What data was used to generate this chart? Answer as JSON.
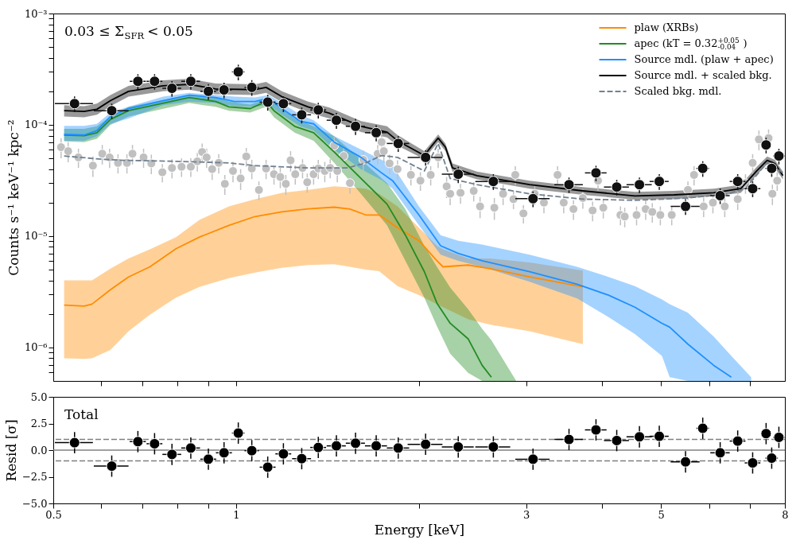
{
  "chart_data": [
    {
      "type": "line",
      "ylabel": "Counts s⁻¹ keV⁻¹ kpc⁻²",
      "log": "xy",
      "xlim": [
        0.5,
        8
      ],
      "ylim": [
        5e-07,
        0.001
      ],
      "xticks": [
        0.6,
        0.7,
        0.8,
        0.9,
        1,
        2,
        3,
        4,
        5,
        6,
        7
      ],
      "yticks": [
        {
          "value": 0.001,
          "label": "10⁻³"
        },
        {
          "value": 0.0001,
          "label": "10⁻⁴"
        },
        {
          "value": 1e-05,
          "label": "10⁻⁵"
        },
        {
          "value": 1e-06,
          "label": "10⁻⁶"
        },
        {
          "value": 6e-07,
          "label": null
        },
        {
          "value": 7e-07,
          "label": null
        },
        {
          "value": 8e-07,
          "label": null
        },
        {
          "value": 9e-07,
          "label": null
        },
        {
          "value": 2e-06,
          "label": null
        },
        {
          "value": 3e-06,
          "label": null
        },
        {
          "value": 4e-06,
          "label": null
        },
        {
          "value": 5e-06,
          "label": null
        },
        {
          "value": 6e-06,
          "label": null
        },
        {
          "value": 7e-06,
          "label": null
        },
        {
          "value": 8e-06,
          "label": null
        },
        {
          "value": 9e-06,
          "label": null
        },
        {
          "value": 2e-05,
          "label": null
        },
        {
          "value": 3e-05,
          "label": null
        },
        {
          "value": 4e-05,
          "label": null
        },
        {
          "value": 5e-05,
          "label": null
        },
        {
          "value": 6e-05,
          "label": null
        },
        {
          "value": 7e-05,
          "label": null
        },
        {
          "value": 8e-05,
          "label": null
        },
        {
          "value": 9e-05,
          "label": null
        },
        {
          "value": 0.0002,
          "label": null
        },
        {
          "value": 0.0003,
          "label": null
        },
        {
          "value": 0.0004,
          "label": null
        },
        {
          "value": 0.0005,
          "label": null
        },
        {
          "value": 0.0006,
          "label": null
        },
        {
          "value": 0.0007,
          "label": null
        },
        {
          "value": 0.0008,
          "label": null
        },
        {
          "value": 0.0009,
          "label": null
        }
      ],
      "tick_labels": "y",
      "legend": "top right",
      "annotations": [
        "0.03 ≤ Σ$_{SFR}$ < 0.05"
      ],
      "series": [
        {
          "type": "scatter",
          "marker": "circle",
          "color": "#c0c0c0",
          "x": [
            0.515,
            0.529,
            0.55,
            0.581,
            0.602,
            0.619,
            0.639,
            0.661,
            0.675,
            0.704,
            0.725,
            0.756,
            0.784,
            0.813,
            0.842,
            0.863,
            0.879,
            0.894,
            0.913,
            0.936,
            0.958,
            0.988,
            1.017,
            1.039,
            1.061,
            1.09,
            1.12,
            1.154,
            1.182,
            1.207,
            1.229,
            1.251,
            1.286,
            1.309,
            1.341,
            1.365,
            1.399,
            1.428,
            1.45,
            1.467,
            1.503,
            1.539,
            1.619,
            1.71,
            1.735,
            1.75,
            1.788,
            1.843,
            1.939,
            2.01,
            2.09,
            2.15,
            2.22,
            2.25,
            2.34,
            2.46,
            2.52,
            2.66,
            2.75,
            2.86,
            2.88,
            2.97,
            3.1,
            3.21,
            3.38,
            3.46,
            3.59,
            3.72,
            3.86,
            3.94,
            4.02,
            4.29,
            4.36,
            4.56,
            4.72,
            4.84,
            4.99,
            5.21,
            5.54,
            5.67,
            5.88,
            6.09,
            6.37,
            6.69,
            6.89,
            7.08,
            7.25,
            7.52,
            7.63,
            7.77
          ],
          "values": [
            6.3e-05,
            5.8e-05,
            5.1e-05,
            4.3e-05,
            5.5e-05,
            5.1e-05,
            4.55e-05,
            4.55e-05,
            5.5e-05,
            5.1e-05,
            4.5e-05,
            3.75e-05,
            4.1e-05,
            4.2e-05,
            4.2e-05,
            4.7e-05,
            5.7e-05,
            5.1e-05,
            4e-05,
            4.55e-05,
            2.95e-05,
            3.85e-05,
            3.3e-05,
            5.2e-05,
            4.05e-05,
            2.6e-05,
            4.05e-05,
            3.6e-05,
            3.4e-05,
            2.95e-05,
            4.8e-05,
            3.6e-05,
            4.1e-05,
            3.05e-05,
            3.6e-05,
            4.05e-05,
            3.85e-05,
            4.1e-05,
            6.5e-05,
            3.85e-05,
            5.25e-05,
            3e-05,
            4.85e-05,
            5.5e-05,
            7e-05,
            5.8e-05,
            4.5e-05,
            4e-05,
            3.55e-05,
            3.15e-05,
            3.55e-05,
            5.1e-05,
            2.8e-05,
            2.4e-05,
            2.45e-05,
            2.55e-05,
            1.85e-05,
            1.8e-05,
            2.4e-05,
            2.15e-05,
            3.55e-05,
            1.6e-05,
            2.4e-05,
            2e-05,
            3.55e-05,
            2e-05,
            1.75e-05,
            2.2e-05,
            1.7e-05,
            3.15e-05,
            1.8e-05,
            1.55e-05,
            1.5e-05,
            1.55e-05,
            1.75e-05,
            1.65e-05,
            1.55e-05,
            1.55e-05,
            2.6e-05,
            3.55e-05,
            1.85e-05,
            2e-05,
            1.85e-05,
            2.15e-05,
            3e-05,
            4.55e-05,
            7.4e-05,
            7.6e-05,
            2.4e-05,
            3.15e-05
          ],
          "errors": [
            1.3e-05,
            1.2e-05,
            1e-05,
            9e-06,
            1.1e-05,
            1e-05,
            9e-06,
            9e-06,
            1.1e-05,
            1e-05,
            9e-06,
            7e-06,
            8e-06,
            8e-06,
            8e-06,
            9e-06,
            1.1e-05,
            1e-05,
            8e-06,
            9e-06,
            6e-06,
            8e-06,
            7e-06,
            1e-05,
            8e-06,
            5e-06,
            8e-06,
            7e-06,
            7e-06,
            6e-06,
            1e-05,
            7e-06,
            8e-06,
            6e-06,
            7e-06,
            8e-06,
            8e-06,
            8e-06,
            1.3e-05,
            8e-06,
            1.1e-05,
            6e-06,
            1e-05,
            1.1e-05,
            1.4e-05,
            1.2e-05,
            9e-06,
            8e-06,
            7e-06,
            6e-06,
            7e-06,
            1e-05,
            6e-06,
            5e-06,
            5e-06,
            5e-06,
            4e-06,
            4e-06,
            5e-06,
            4e-06,
            7e-06,
            3e-06,
            5e-06,
            4e-06,
            7e-06,
            4e-06,
            3.5e-06,
            4.4e-06,
            3.4e-06,
            6e-06,
            3.6e-06,
            3e-06,
            3e-06,
            3e-06,
            3.5e-06,
            3.3e-06,
            3e-06,
            3e-06,
            5e-06,
            7e-06,
            3.7e-06,
            4e-06,
            3.7e-06,
            4.3e-06,
            6e-06,
            9e-06,
            1.5e-05,
            1.5e-05,
            5e-06,
            6e-06
          ]
        },
        {
          "name": "plaw (XRBs)",
          "color": "#ff8c00",
          "x": [
            0.521,
            0.562,
            0.579,
            0.621,
            0.665,
            0.721,
            0.796,
            0.87,
            0.973,
            1.074,
            1.189,
            1.313,
            1.45,
            1.539,
            1.634,
            1.719,
            1.843,
            1.999,
            2.14,
            2.19,
            2.41,
            2.62,
            3.04,
            3.72
          ],
          "values": [
            2.4e-06,
            2.35e-06,
            2.45e-06,
            3.3e-06,
            4.3e-06,
            5.3e-06,
            7.7e-06,
            9.8e-06,
            1.25e-05,
            1.5e-05,
            1.65e-05,
            1.76e-05,
            1.82e-05,
            1.75e-05,
            1.55e-05,
            1.55e-05,
            1.19e-05,
            9.1e-06,
            6e-06,
            5.3e-06,
            5.5e-06,
            5.1e-06,
            4.3e-06,
            3.5e-06
          ],
          "upper": [
            4e-06,
            4e-06,
            4e-06,
            5.1e-06,
            6.3e-06,
            7.6e-06,
            9.8e-06,
            1.4e-05,
            1.85e-05,
            2.15e-05,
            2.45e-05,
            2.6e-05,
            2.8e-05,
            2.75e-05,
            2.67e-05,
            2.4e-05,
            1.85e-05,
            1.19e-05,
            8.2e-06,
            7.6e-06,
            6.3e-06,
            6.3e-06,
            5.8e-06,
            4.9e-06
          ],
          "lower": [
            8e-07,
            7.9e-07,
            8e-07,
            9.5e-07,
            1.4e-06,
            1.97e-06,
            2.8e-06,
            3.5e-06,
            4.2e-06,
            4.7e-06,
            5.2e-06,
            5.5e-06,
            5.6e-06,
            5.3e-06,
            5e-06,
            4.85e-06,
            3.56e-06,
            2.95e-06,
            2.45e-06,
            2.3e-06,
            1.79e-06,
            1.6e-06,
            1.4e-06,
            1.07e-06
          ]
        },
        {
          "name": "apec (kT = 0.32$^{+0.05}$$_{-0.04}$)",
          "color": "#228b22",
          "x": [
            0.521,
            0.562,
            0.59,
            0.621,
            0.665,
            0.837,
            0.925,
            0.973,
            1.055,
            1.12,
            1.154,
            1.248,
            1.341,
            1.45,
            1.605,
            1.771,
            1.899,
            2.04,
            2.14,
            2.25,
            2.41,
            2.54,
            2.63,
            2.89
          ],
          "values": [
            8.1e-05,
            8e-05,
            8.5e-05,
            0.000112,
            0.000134,
            0.000176,
            0.000162,
            0.000145,
            0.00014,
            0.000162,
            0.000134,
            9.7e-05,
            8.5e-05,
            5.7e-05,
            3.3e-05,
            1.94e-05,
            1.02e-05,
            4.8e-06,
            2.5e-06,
            1.65e-06,
            1.19e-06,
            6.9e-07,
            5.4e-07,
            null
          ],
          "upper": [
            9.2e-05,
            9.2e-05,
            9.7e-05,
            0.000119,
            0.000145,
            0.000185,
            0.000176,
            0.000162,
            0.000152,
            0.00017,
            0.000157,
            0.000114,
            9.7e-05,
            7.9e-05,
            4.85e-05,
            3e-05,
            1.75e-05,
            8.2e-06,
            5.3e-06,
            3.45e-06,
            2.2e-06,
            1.47e-06,
            1.16e-06,
            5e-07
          ],
          "lower": [
            7.1e-05,
            7e-05,
            7.5e-05,
            0.0001,
            0.000119,
            0.000157,
            0.000145,
            0.000134,
            0.000129,
            0.000145,
            0.000117,
            8.5e-05,
            7.2e-05,
            4.55e-05,
            2.4e-05,
            1.25e-05,
            6e-06,
            2.8e-06,
            1.55e-06,
            8.8e-07,
            5.9e-07,
            5e-07,
            5e-07,
            5e-07
          ]
        },
        {
          "name": "Source mdl. (plaw + apec)",
          "color": "#1e90ff",
          "x": [
            0.521,
            0.562,
            0.59,
            0.621,
            0.665,
            0.758,
            0.837,
            0.925,
            0.993,
            1.074,
            1.13,
            1.189,
            1.274,
            1.341,
            1.45,
            1.605,
            1.735,
            1.809,
            1.999,
            2.17,
            2.32,
            2.54,
            3.04,
            3.64,
            4.1,
            4.53,
            5.02,
            5.17,
            5.54,
            6.11,
            6.53,
            7.04
          ],
          "values": [
            8.2e-05,
            8.1e-05,
            8.9e-05,
            0.000119,
            0.00014,
            0.000165,
            0.000185,
            0.000176,
            0.000162,
            0.000162,
            0.000173,
            0.00014,
            0.000108,
            0.000102,
            7e-05,
            5.1e-05,
            3.7e-05,
            3.15e-05,
            1.55e-05,
            8.2e-06,
            7e-06,
            6e-06,
            4.8e-06,
            3.7e-06,
            2.95e-06,
            2.3e-06,
            1.65e-06,
            1.52e-06,
            1.07e-06,
            6.9e-07,
            5.4e-07,
            null
          ],
          "upper": [
            9.8e-05,
            9.8e-05,
            0.000102,
            0.000129,
            0.000145,
            0.000179,
            0.000194,
            0.000185,
            0.000179,
            0.000176,
            0.000185,
            0.000157,
            0.000123,
            0.00011,
            7.9e-05,
            6e-05,
            4.85e-05,
            4.3e-05,
            1.85e-05,
            1.02e-05,
            9.1e-06,
            8.4e-06,
            6.8e-06,
            5.3e-06,
            4.3e-06,
            3.56e-06,
            2.7e-06,
            2.45e-06,
            2.05e-06,
            1.25e-06,
            8.4e-07,
            5.4e-07
          ],
          "lower": [
            7.2e-05,
            7.2e-05,
            7.9e-05,
            0.000102,
            0.000114,
            0.00015,
            0.000162,
            0.000157,
            0.000147,
            0.000145,
            0.000152,
            0.000123,
            9.7e-05,
            8.9e-05,
            6e-05,
            4e-05,
            3.2e-05,
            2.67e-05,
            1.25e-05,
            6.8e-06,
            6e-06,
            5.3e-06,
            3.9e-06,
            2.76e-06,
            1.87e-06,
            1.32e-06,
            8.4e-07,
            5.4e-07,
            5e-07,
            5e-07,
            5e-07,
            5e-07
          ]
        },
        {
          "name": "Source mdl. + scaled bkg.",
          "color": "#000000",
          "x": [
            0.521,
            0.562,
            0.59,
            0.621,
            0.665,
            0.758,
            0.837,
            0.925,
            1.074,
            1.12,
            1.189,
            1.313,
            1.424,
            1.605,
            1.771,
            1.843,
            2.04,
            2.1,
            2.15,
            2.21,
            2.27,
            2.49,
            3.04,
            3.72,
            4.53,
            5.26,
            6.11,
            6.77,
            7.19,
            7.48,
            7.7,
            7.94
          ],
          "values": [
            0.000134,
            0.000132,
            0.000138,
            0.000165,
            0.0002,
            0.000224,
            0.000231,
            0.00021,
            0.000207,
            0.000217,
            0.000179,
            0.000145,
            0.000127,
            9.7e-05,
            8.6e-05,
            7.2e-05,
            5.3e-05,
            6.5e-05,
            7.6e-05,
            6.3e-05,
            4.1e-05,
            3.5e-05,
            2.9e-05,
            2.55e-05,
            2.3e-05,
            2.35e-05,
            2.45e-05,
            2.67e-05,
            3.85e-05,
            4.8e-05,
            4.5e-05,
            3.5e-05
          ],
          "upper": [
            0.00015,
            0.000147,
            0.000155,
            0.000185,
            0.000224,
            0.000251,
            0.000259,
            0.000235,
            0.000231,
            0.000243,
            0.0002,
            0.000162,
            0.000143,
            0.000108,
            9.7e-05,
            8.1e-05,
            5.8e-05,
            7e-05,
            8.2e-05,
            6.8e-05,
            4.5e-05,
            3.8e-05,
            3.15e-05,
            2.76e-05,
            2.5e-05,
            2.55e-05,
            2.67e-05,
            2.9e-05,
            4.2e-05,
            5.2e-05,
            4.85e-05,
            3.8e-05
          ],
          "lower": [
            0.000119,
            0.000117,
            0.000123,
            0.000147,
            0.000179,
            0.0002,
            0.000207,
            0.000188,
            0.000185,
            0.000194,
            0.00016,
            0.000129,
            0.000114,
            8.6e-05,
            7.7e-05,
            6.5e-05,
            4.9e-05,
            6e-05,
            7e-05,
            5.8e-05,
            3.8e-05,
            3.24e-05,
            2.67e-05,
            2.35e-05,
            2.13e-05,
            2.15e-05,
            2.28e-05,
            2.45e-05,
            3.55e-05,
            4.4e-05,
            4.1e-05,
            3.24e-05
          ]
        },
        {
          "name": "Scaled bkg. mdl.",
          "color": "#708090",
          "line_style": "dashed",
          "x": [
            0.521,
            0.602,
            0.653,
            0.796,
            0.973,
            1.074,
            1.313,
            1.526,
            1.634,
            1.735,
            1.843,
            2.04,
            2.15,
            2.25,
            2.49,
            3.04,
            3.72,
            4.53,
            5.54,
            6.43,
            6.89,
            7.48,
            7.94
          ],
          "values": [
            5.25e-05,
            4.9e-05,
            4.8e-05,
            4.7e-05,
            4.55e-05,
            4.3e-05,
            4.1e-05,
            4.1e-05,
            4.55e-05,
            5.3e-05,
            5.1e-05,
            3.85e-05,
            6.8e-05,
            3.3e-05,
            2.9e-05,
            2.4e-05,
            2.15e-05,
            2.1e-05,
            2.2e-05,
            2.4e-05,
            2.67e-05,
            4.6e-05,
            3.7e-05
          ]
        },
        {
          "type": "scatter",
          "marker": "circle",
          "color": "#111111",
          "x": [
            0.542,
            0.624,
            0.689,
            0.734,
            0.784,
            0.842,
            0.9,
            0.955,
            1.008,
            1.061,
            1.127,
            1.196,
            1.282,
            1.365,
            1.462,
            1.572,
            1.7,
            1.848,
            2.05,
            2.32,
            2.65,
            3.08,
            3.53,
            3.91,
            4.23,
            4.61,
            4.97,
            5.49,
            5.86,
            6.26,
            6.69,
            7.08,
            7.45,
            7.61,
            7.82
          ],
          "values": [
            0.000155,
            0.000134,
            0.000246,
            0.000246,
            0.000213,
            0.000246,
            0.0002,
            0.000206,
            0.000299,
            0.000217,
            0.00016,
            0.000155,
            0.000123,
            0.000136,
            0.00011,
            9.7e-05,
            8.5e-05,
            6.8e-05,
            5.1e-05,
            3.6e-05,
            3.1e-05,
            2.17e-05,
            2.9e-05,
            3.7e-05,
            2.76e-05,
            2.9e-05,
            3.1e-05,
            1.85e-05,
            4.06e-05,
            2.31e-05,
            3.1e-05,
            2.67e-05,
            6.6e-05,
            4.06e-05,
            5.25e-05
          ],
          "errors": [
            2.5e-05,
            2.1e-05,
            3.9e-05,
            3.9e-05,
            3.4e-05,
            3.9e-05,
            3.2e-05,
            3.3e-05,
            4.8e-05,
            3.5e-05,
            2.6e-05,
            2.5e-05,
            2e-05,
            2.2e-05,
            1.8e-05,
            1.6e-05,
            1.4e-05,
            1.1e-05,
            8e-06,
            6e-06,
            5e-06,
            3.5e-06,
            4.6e-06,
            5.9e-06,
            4.4e-06,
            4.6e-06,
            5e-06,
            3e-06,
            6.5e-06,
            3.7e-06,
            5e-06,
            4.3e-06,
            1.06e-05,
            6.5e-06,
            8.4e-06
          ],
          "xerrors": [
            0.039,
            0.041,
            0.021,
            0.022,
            0.028,
            0.03,
            0.027,
            0.029,
            0.024,
            0.029,
            0.034,
            0.036,
            0.046,
            0.041,
            0.053,
            0.057,
            0.071,
            0.078,
            0.135,
            0.14,
            0.175,
            0.2,
            0.19,
            0.16,
            0.2,
            0.22,
            0.18,
            0.3,
            0.14,
            0.23,
            0.2,
            0.21,
            0.13,
            0.18,
            0.17
          ]
        }
      ]
    },
    {
      "type": "scatter",
      "xlabel": "Energy [keV]",
      "ylabel": "Resid [σ]",
      "log": "x",
      "xlim": [
        0.5,
        8
      ],
      "ylim": [
        -5,
        5
      ],
      "xticks": [
        0.5,
        {
          "value": 0.6,
          "label": null
        },
        {
          "value": 0.7,
          "label": null
        },
        {
          "value": 0.8,
          "label": null
        },
        {
          "value": 0.9,
          "label": null
        },
        1,
        {
          "value": 2,
          "label": null
        },
        3,
        {
          "value": 4,
          "label": null
        },
        5,
        {
          "value": 6,
          "label": null
        },
        {
          "value": 7,
          "label": null
        },
        8
      ],
      "yticks": [
        {
          "value": -5,
          "label": "−5.0"
        },
        {
          "value": -2.5,
          "label": "−2.5"
        },
        {
          "value": 0,
          "label": "0.0"
        },
        {
          "value": 2.5,
          "label": "2.5"
        },
        {
          "value": 5,
          "label": "5.0"
        }
      ],
      "annotations": [
        "Total"
      ],
      "ref_lines": [
        {
          "axis": "y",
          "value": 1,
          "color": "#808080",
          "line_style": "dashed"
        },
        {
          "axis": "y",
          "value": -1,
          "color": "#808080",
          "line_style": "dashed"
        },
        {
          "axis": "y",
          "value": 0,
          "color": "#808080",
          "line_style": "solid"
        }
      ],
      "series": [
        {
          "marker": "circle",
          "color": "#000000",
          "x": [
            0.542,
            0.624,
            0.689,
            0.734,
            0.784,
            0.842,
            0.9,
            0.955,
            1.008,
            1.061,
            1.127,
            1.196,
            1.282,
            1.365,
            1.462,
            1.572,
            1.7,
            1.848,
            2.05,
            2.32,
            2.65,
            3.08,
            3.53,
            3.91,
            4.23,
            4.61,
            4.97,
            5.49,
            5.86,
            6.26,
            6.69,
            7.08,
            7.45,
            7.61,
            7.82
          ],
          "values": [
            0.7,
            -1.5,
            0.8,
            0.6,
            -0.4,
            0.2,
            -0.85,
            -0.25,
            1.6,
            -0.05,
            -1.6,
            -0.35,
            -0.8,
            0.25,
            0.4,
            0.65,
            0.4,
            0.2,
            0.55,
            0.3,
            0.3,
            -0.85,
            1.0,
            1.9,
            0.9,
            1.25,
            1.3,
            -1.1,
            2.05,
            -0.25,
            0.85,
            -1.2,
            1.55,
            -0.75,
            1.2
          ],
          "errors": [
            1,
            1,
            1,
            1,
            1,
            1,
            1,
            1,
            1,
            1,
            1,
            1,
            1,
            1,
            1,
            1,
            1,
            1,
            1,
            1,
            1,
            1,
            1,
            1,
            1,
            1,
            1,
            1,
            1,
            1,
            1,
            1,
            1,
            1,
            1
          ],
          "xerrors": [
            0.039,
            0.041,
            0.021,
            0.022,
            0.028,
            0.03,
            0.027,
            0.029,
            0.024,
            0.029,
            0.034,
            0.036,
            0.046,
            0.041,
            0.053,
            0.057,
            0.071,
            0.078,
            0.135,
            0.14,
            0.175,
            0.2,
            0.19,
            0.16,
            0.2,
            0.22,
            0.18,
            0.3,
            0.14,
            0.23,
            0.2,
            0.21,
            0.13,
            0.18,
            0.17
          ]
        }
      ]
    }
  ]
}
